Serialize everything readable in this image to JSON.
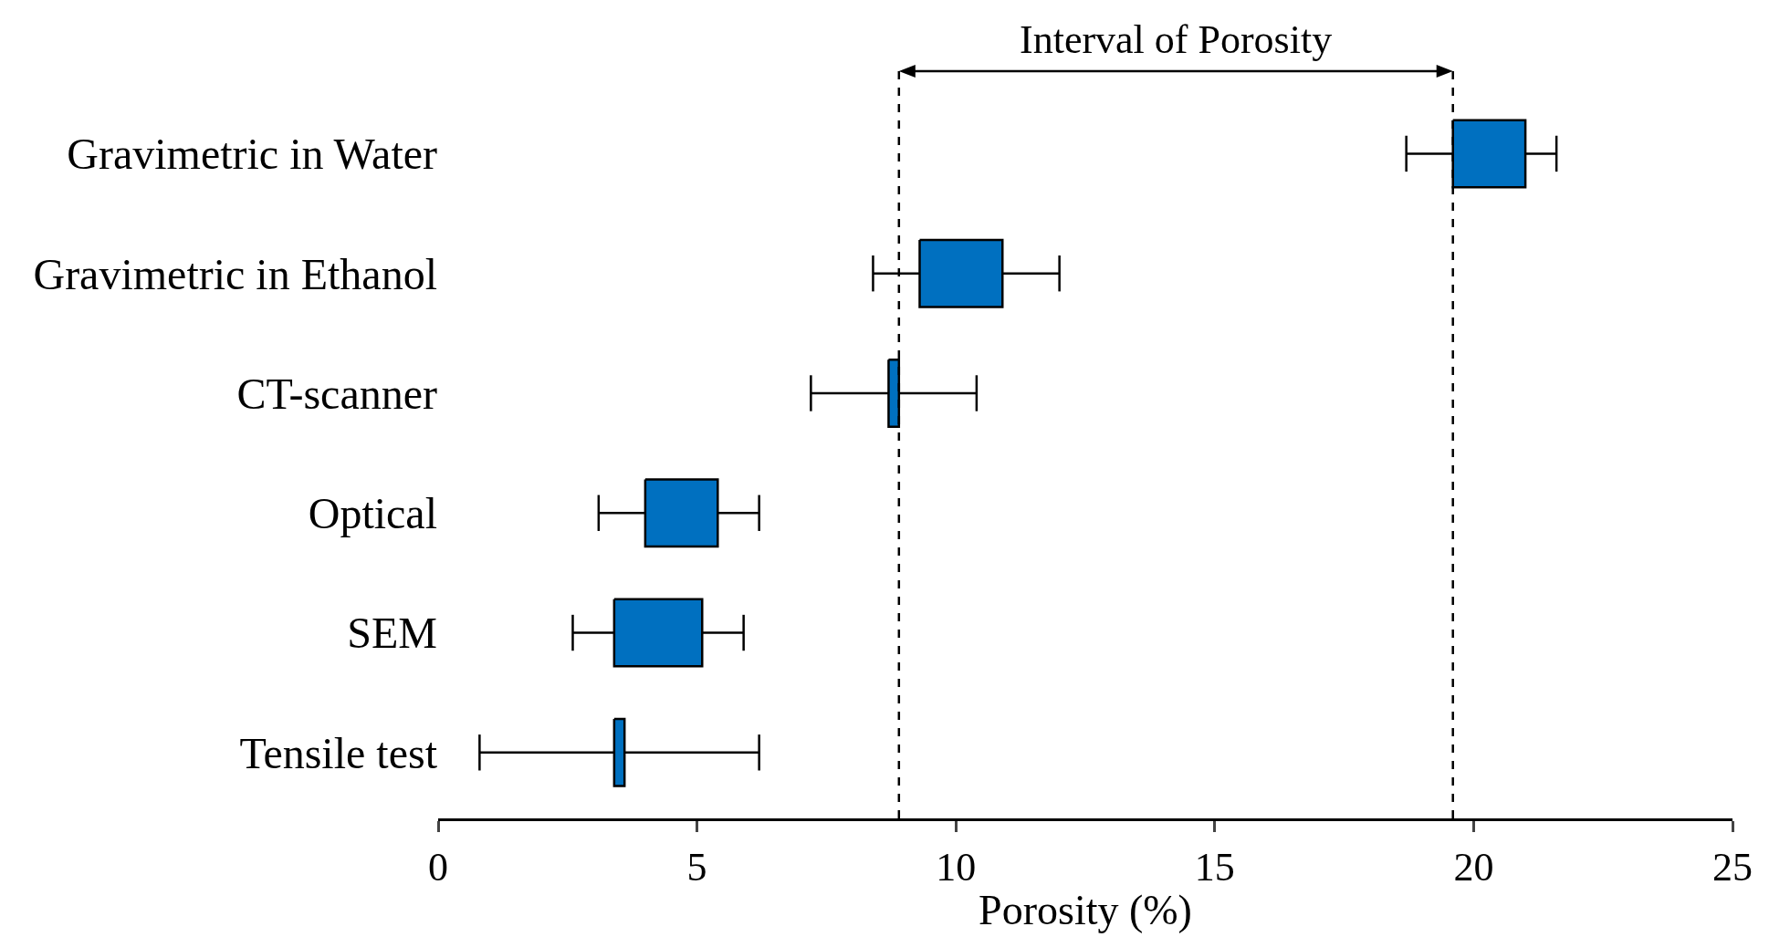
{
  "chart_data": {
    "type": "box",
    "orientation": "horizontal",
    "xlabel": "Porosity (%)",
    "categories": [
      "Gravimetric in Water",
      "Gravimetric in Ethanol",
      "CT-scanner",
      "Optical",
      "SEM",
      "Tensile test"
    ],
    "boxes": [
      {
        "low": 18.7,
        "q1": 19.6,
        "q3": 21.0,
        "high": 21.6
      },
      {
        "low": 8.4,
        "q1": 9.3,
        "q3": 10.9,
        "high": 12.0
      },
      {
        "low": 7.2,
        "q1": 8.7,
        "q3": 8.9,
        "high": 10.4
      },
      {
        "low": 3.1,
        "q1": 4.0,
        "q3": 5.4,
        "high": 6.2
      },
      {
        "low": 2.6,
        "q1": 3.4,
        "q3": 5.1,
        "high": 5.9
      },
      {
        "low": 0.8,
        "q1": 3.4,
        "q3": 3.6,
        "high": 6.2
      }
    ],
    "color": "#0070c0",
    "xlim": [
      0,
      25
    ],
    "xticks": [
      0,
      5,
      10,
      15,
      20,
      25
    ],
    "grid": false,
    "ref_lines": [
      {
        "axis": "x",
        "value": 8.9,
        "line_style": "dashed"
      },
      {
        "axis": "x",
        "value": 19.6,
        "line_style": "dashed"
      }
    ],
    "annotations": [
      "Interval of Porosity"
    ]
  }
}
